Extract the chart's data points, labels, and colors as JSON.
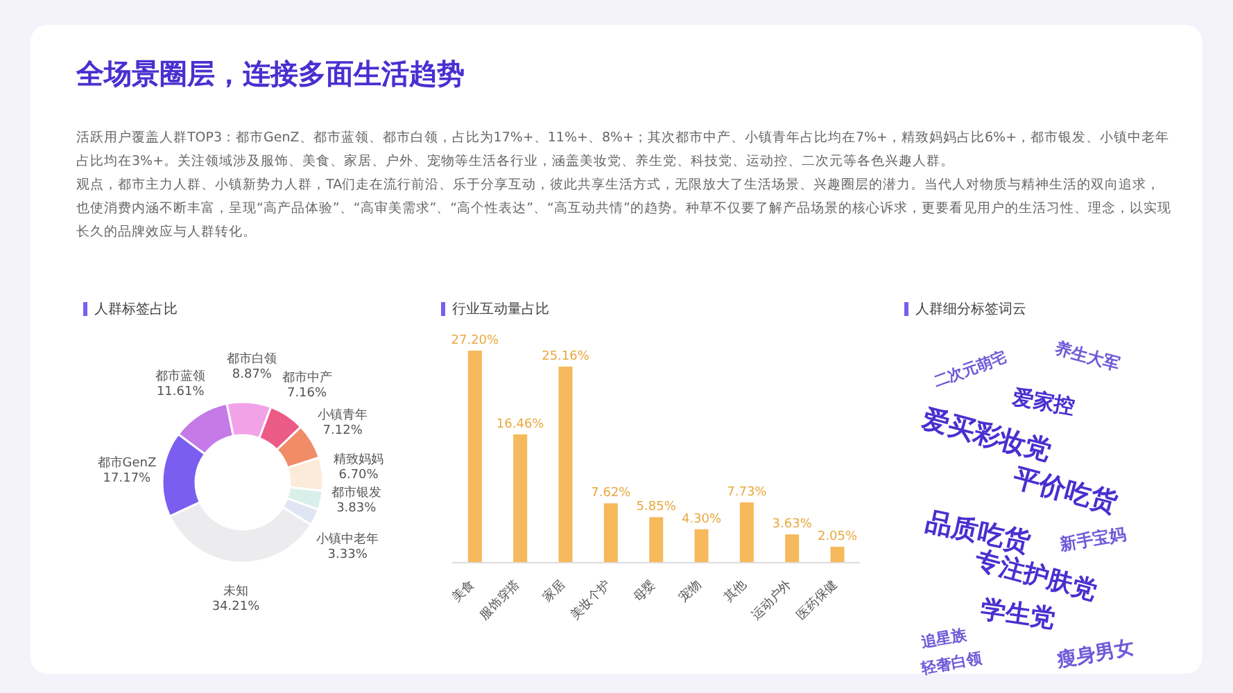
{
  "chart_data": [
    {
      "type": "other",
      "title": "全场景圈层，连接多面生活趋势",
      "annotations": [
        "活跃用户覆盖人群TOP3：都市GenZ、都市蓝领、都市白领，占比为17%+、11%+、8%+；其次都市中产、小镇青年占比均在7%+，精致妈妈占比6%+，都市银发、小镇中老年占比均在3%+。关注领域涉及服饰、美食、家居、户外、宠物等生活各行业，涵盖美妆党、养生党、科技党、运动控、二次元等各色兴趣人群。",
        "观点，都市主力人群、小镇新势力人群，TA们走在流行前沿、乐于分享互动，彼此共享生活方式，无限放大了生活场景、兴趣圈层的潜力。当代人对物质与精神生活的双向追求，也使消费内涵不断丰富，呈现“高产品体验”、“高审美需求”、“高个性表达”、“高互动共情”的趋势。种草不仅要了解产品场景的核心诉求，更要看见用户的生活习性、理念，以实现长久的品牌效应与人群转化。"
      ]
    },
    {
      "type": "donut",
      "title": "人群标签占比",
      "categories": [
        "都市GenZ",
        "都市蓝领",
        "都市白领",
        "都市中产",
        "小镇青年",
        "精致妈妈",
        "都市银发",
        "小镇中老年",
        "未知"
      ],
      "values": [
        17.17,
        11.61,
        8.87,
        7.16,
        7.12,
        6.7,
        3.83,
        3.33,
        34.21
      ],
      "value_labels": [
        "17.17%",
        "11.61%",
        "8.87%",
        "7.16%",
        "7.12%",
        "6.70%",
        "3.83%",
        "3.33%",
        "34.21%"
      ],
      "colors": [
        "#7a5ef0",
        "#c57ae8",
        "#f2a3e8",
        "#ec5a86",
        "#f08c68",
        "#fcebd8",
        "#d9f0ea",
        "#dfe5f3",
        "#ececee"
      ]
    },
    {
      "type": "bar",
      "title": "行业互动量占比",
      "categories": [
        "美食",
        "服饰穿搭",
        "家居",
        "美妆个护",
        "母婴",
        "宠物",
        "其他",
        "运动户外",
        "医药保健"
      ],
      "values": [
        27.2,
        16.46,
        25.16,
        7.62,
        5.85,
        4.3,
        7.73,
        3.63,
        2.05
      ],
      "value_labels": [
        "27.20%",
        "16.46%",
        "25.16%",
        "7.62%",
        "5.85%",
        "4.30%",
        "7.73%",
        "3.63%",
        "2.05%"
      ],
      "color": "#f6b95c"
    },
    {
      "type": "other",
      "title": "人群细分标签词云",
      "annotations": [
        "二次元萌宅",
        "养生大军",
        "爱家控",
        "爱买彩妆党",
        "平价吃货",
        "品质吃货",
        "新手宝妈",
        "专注护肤党",
        "学生党",
        "追星族",
        "轻奢白领",
        "瘦身男女"
      ]
    }
  ]
}
